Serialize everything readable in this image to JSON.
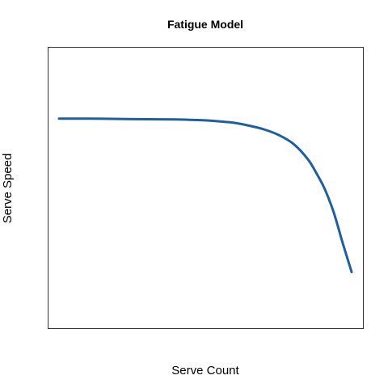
{
  "chart_data": {
    "type": "line",
    "title": "Fatigue Model",
    "xlabel": "Serve Count",
    "ylabel": "Serve Speed",
    "show_ticks": false,
    "grid": false,
    "line_color": "#1f5f9e",
    "xlim": [
      0,
      1
    ],
    "ylim": [
      0,
      1
    ],
    "series": [
      {
        "x": [
          0.0,
          0.1,
          0.2,
          0.3,
          0.4,
          0.5,
          0.55,
          0.6,
          0.65,
          0.7,
          0.75,
          0.8,
          0.85,
          0.88,
          0.91,
          0.94,
          0.97,
          1.0
        ],
        "values": [
          0.747,
          0.747,
          0.746,
          0.745,
          0.744,
          0.741,
          0.737,
          0.732,
          0.722,
          0.709,
          0.689,
          0.658,
          0.603,
          0.552,
          0.492,
          0.409,
          0.302,
          0.2
        ]
      }
    ]
  }
}
